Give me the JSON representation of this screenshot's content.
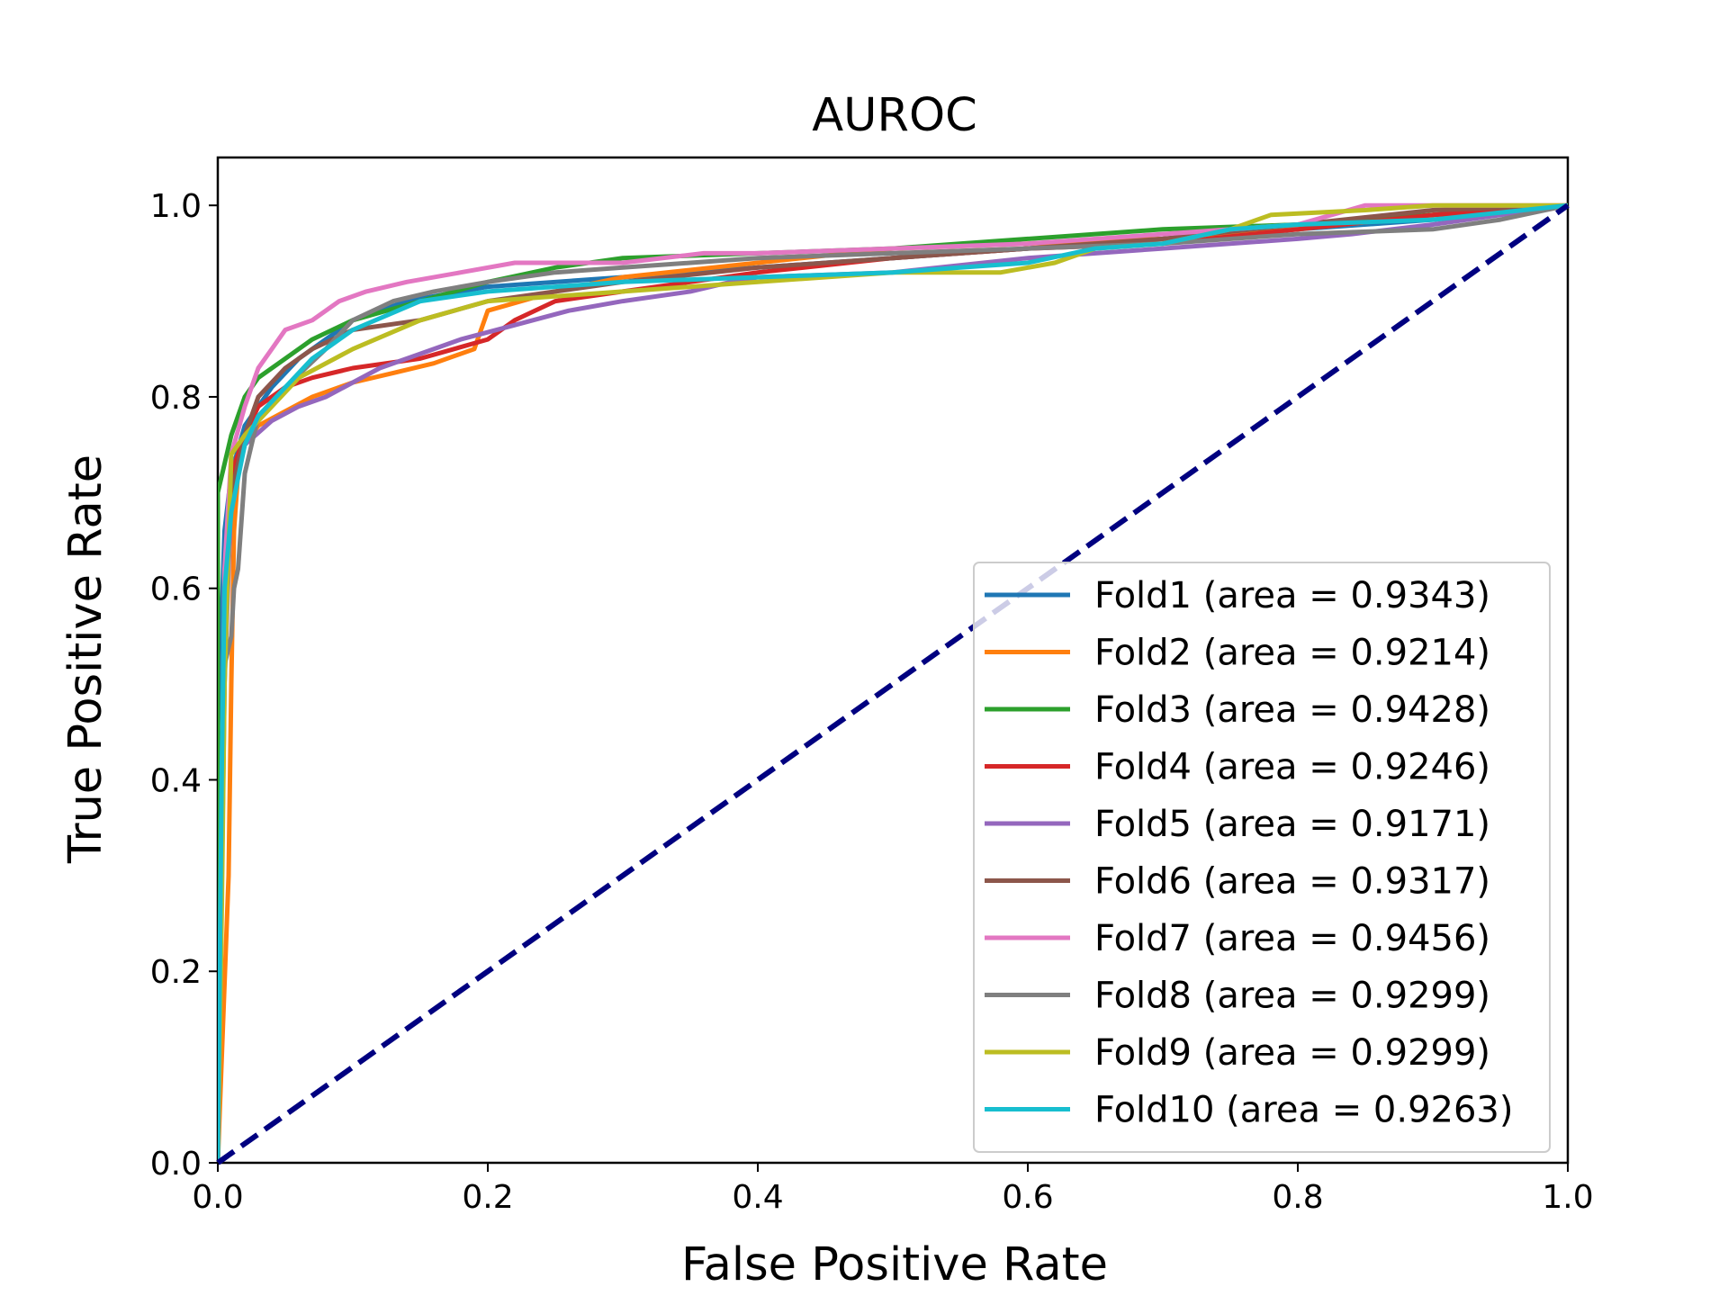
{
  "chart_data": {
    "type": "line",
    "title": "AUROC",
    "xlabel": "False Positive Rate",
    "ylabel": "True Positive Rate",
    "xlim": [
      0.0,
      1.0
    ],
    "ylim": [
      0.0,
      1.05
    ],
    "xticks": [
      "0.0",
      "0.2",
      "0.4",
      "0.6",
      "0.8",
      "1.0"
    ],
    "yticks": [
      "0.0",
      "0.2",
      "0.4",
      "0.6",
      "0.8",
      "1.0"
    ],
    "grid": false,
    "legend_position": "lower right",
    "diagonal": {
      "x": [
        0,
        1
      ],
      "y": [
        0,
        1
      ],
      "color": "#000080",
      "style": "dashed"
    },
    "series": [
      {
        "name": "Fold1 (area = 0.9343)",
        "color": "#1f77b4",
        "x": [
          0,
          0,
          0.005,
          0.01,
          0.02,
          0.04,
          0.06,
          0.08,
          0.1,
          0.14,
          0.2,
          0.3,
          0.4,
          0.5,
          0.6,
          0.7,
          0.8,
          0.9,
          1.0
        ],
        "y": [
          0,
          0.45,
          0.66,
          0.72,
          0.77,
          0.81,
          0.84,
          0.86,
          0.88,
          0.9,
          0.915,
          0.925,
          0.935,
          0.945,
          0.955,
          0.965,
          0.975,
          0.985,
          1.0
        ]
      },
      {
        "name": "Fold2 (area = 0.9214)",
        "color": "#ff7f0e",
        "x": [
          0,
          0.008,
          0.01,
          0.012,
          0.015,
          0.02,
          0.03,
          0.05,
          0.07,
          0.1,
          0.13,
          0.16,
          0.19,
          0.2,
          0.25,
          0.3,
          0.4,
          0.5,
          0.6,
          0.7,
          0.8,
          0.9,
          1.0
        ],
        "y": [
          0,
          0.3,
          0.5,
          0.66,
          0.72,
          0.75,
          0.77,
          0.785,
          0.8,
          0.815,
          0.825,
          0.835,
          0.85,
          0.89,
          0.91,
          0.925,
          0.94,
          0.955,
          0.96,
          0.965,
          0.975,
          0.99,
          1.0
        ]
      },
      {
        "name": "Fold3 (area = 0.9428)",
        "color": "#2ca02c",
        "x": [
          0,
          0,
          0.01,
          0.02,
          0.03,
          0.05,
          0.07,
          0.1,
          0.15,
          0.2,
          0.25,
          0.3,
          0.4,
          0.5,
          0.6,
          0.7,
          0.8,
          0.9,
          1.0
        ],
        "y": [
          0,
          0.7,
          0.76,
          0.8,
          0.82,
          0.84,
          0.86,
          0.88,
          0.9,
          0.92,
          0.935,
          0.945,
          0.95,
          0.955,
          0.965,
          0.975,
          0.98,
          0.99,
          1.0
        ]
      },
      {
        "name": "Fold4 (area = 0.9246)",
        "color": "#d62728",
        "x": [
          0,
          0.005,
          0.01,
          0.02,
          0.03,
          0.05,
          0.07,
          0.1,
          0.15,
          0.2,
          0.22,
          0.25,
          0.3,
          0.35,
          0.4,
          0.5,
          0.6,
          0.7,
          0.8,
          0.9,
          1.0
        ],
        "y": [
          0,
          0.55,
          0.72,
          0.76,
          0.79,
          0.81,
          0.82,
          0.83,
          0.84,
          0.86,
          0.88,
          0.9,
          0.91,
          0.92,
          0.93,
          0.945,
          0.955,
          0.96,
          0.975,
          0.99,
          1.0
        ]
      },
      {
        "name": "Fold5 (area = 0.9171)",
        "color": "#9467bd",
        "x": [
          0,
          0.005,
          0.01,
          0.02,
          0.04,
          0.06,
          0.08,
          0.1,
          0.12,
          0.15,
          0.18,
          0.22,
          0.26,
          0.3,
          0.35,
          0.38,
          0.4,
          0.5,
          0.6,
          0.7,
          0.8,
          0.84,
          0.9,
          1.0
        ],
        "y": [
          0,
          0.5,
          0.7,
          0.75,
          0.775,
          0.79,
          0.8,
          0.815,
          0.83,
          0.845,
          0.86,
          0.875,
          0.89,
          0.9,
          0.91,
          0.92,
          0.925,
          0.93,
          0.945,
          0.955,
          0.965,
          0.97,
          0.98,
          1.0
        ]
      },
      {
        "name": "Fold6 (area = 0.9317)",
        "color": "#8c564b",
        "x": [
          0,
          0.005,
          0.01,
          0.02,
          0.03,
          0.05,
          0.07,
          0.1,
          0.15,
          0.2,
          0.25,
          0.3,
          0.4,
          0.5,
          0.6,
          0.7,
          0.8,
          0.9,
          1.0
        ],
        "y": [
          0,
          0.6,
          0.7,
          0.76,
          0.8,
          0.83,
          0.85,
          0.87,
          0.88,
          0.9,
          0.91,
          0.92,
          0.935,
          0.945,
          0.955,
          0.965,
          0.98,
          0.995,
          1.0
        ]
      },
      {
        "name": "Fold7 (area = 0.9456)",
        "color": "#e377c2",
        "x": [
          0,
          0.005,
          0.01,
          0.02,
          0.03,
          0.04,
          0.05,
          0.07,
          0.09,
          0.11,
          0.14,
          0.18,
          0.22,
          0.3,
          0.36,
          0.4,
          0.5,
          0.6,
          0.7,
          0.8,
          0.85,
          0.9,
          1.0
        ],
        "y": [
          0,
          0.62,
          0.74,
          0.79,
          0.83,
          0.85,
          0.87,
          0.88,
          0.9,
          0.91,
          0.92,
          0.93,
          0.94,
          0.94,
          0.95,
          0.95,
          0.955,
          0.96,
          0.97,
          0.98,
          1.0,
          1.0,
          1.0
        ]
      },
      {
        "name": "Fold8 (area = 0.9299)",
        "color": "#7f7f7f",
        "x": [
          0,
          0.005,
          0.01,
          0.012,
          0.015,
          0.02,
          0.03,
          0.05,
          0.08,
          0.1,
          0.13,
          0.16,
          0.2,
          0.25,
          0.3,
          0.4,
          0.5,
          0.6,
          0.7,
          0.8,
          0.9,
          0.95,
          1.0
        ],
        "y": [
          0,
          0.52,
          0.55,
          0.6,
          0.62,
          0.72,
          0.78,
          0.81,
          0.85,
          0.88,
          0.9,
          0.91,
          0.92,
          0.93,
          0.935,
          0.945,
          0.95,
          0.955,
          0.96,
          0.97,
          0.975,
          0.985,
          1.0
        ]
      },
      {
        "name": "Fold9 (area = 0.9299)",
        "color": "#bcbd22",
        "x": [
          0,
          0.003,
          0.005,
          0.01,
          0.02,
          0.04,
          0.06,
          0.1,
          0.15,
          0.2,
          0.3,
          0.4,
          0.5,
          0.55,
          0.58,
          0.62,
          0.65,
          0.7,
          0.75,
          0.78,
          0.85,
          0.9,
          1.0
        ],
        "y": [
          0,
          0.27,
          0.5,
          0.74,
          0.76,
          0.79,
          0.82,
          0.85,
          0.88,
          0.9,
          0.91,
          0.92,
          0.93,
          0.93,
          0.93,
          0.94,
          0.955,
          0.96,
          0.975,
          0.99,
          0.995,
          1.0,
          1.0
        ]
      },
      {
        "name": "Fold10 (area = 0.9263)",
        "color": "#17becf",
        "x": [
          0,
          0.003,
          0.005,
          0.01,
          0.02,
          0.03,
          0.05,
          0.07,
          0.1,
          0.15,
          0.2,
          0.3,
          0.4,
          0.5,
          0.55,
          0.6,
          0.65,
          0.7,
          0.75,
          0.8,
          0.9,
          1.0
        ],
        "y": [
          0,
          0.42,
          0.6,
          0.68,
          0.75,
          0.78,
          0.81,
          0.84,
          0.87,
          0.9,
          0.91,
          0.92,
          0.925,
          0.93,
          0.935,
          0.94,
          0.955,
          0.96,
          0.975,
          0.98,
          0.985,
          1.0
        ]
      }
    ]
  }
}
